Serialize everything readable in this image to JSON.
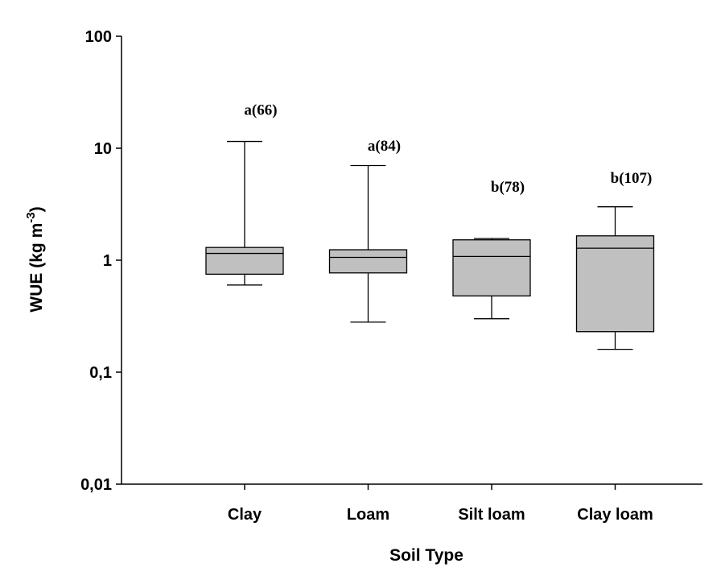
{
  "chart_data": {
    "type": "box",
    "xlabel": "Soil Type",
    "ylabel": "WUE (kg m",
    "ylabel_superscript": "-3",
    "ylabel_close": ")",
    "yscale": "log",
    "ylim": [
      0.01,
      100
    ],
    "yticks": [
      {
        "value": 0.01,
        "label": "0,01"
      },
      {
        "value": 0.1,
        "label": "0,1"
      },
      {
        "value": 1,
        "label": "1"
      },
      {
        "value": 10,
        "label": "10"
      },
      {
        "value": 100,
        "label": "100"
      }
    ],
    "categories": [
      "Clay",
      "Loam",
      "Silt loam",
      "Clay loam"
    ],
    "boxes": [
      {
        "category": "Clay",
        "whisker_low": 0.6,
        "q1": 0.75,
        "median": 1.15,
        "q3": 1.3,
        "whisker_high": 11.5,
        "annotation": "a(66)",
        "annotation_value": 22
      },
      {
        "category": "Loam",
        "whisker_low": 0.28,
        "q1": 0.77,
        "median": 1.06,
        "q3": 1.24,
        "whisker_high": 7.0,
        "annotation": "a(84)",
        "annotation_value": 10.5
      },
      {
        "category": "Silt loam",
        "whisker_low": 0.3,
        "q1": 0.48,
        "median": 1.08,
        "q3": 1.52,
        "whisker_high": 1.56,
        "annotation": "b(78)",
        "annotation_value": 4.5
      },
      {
        "category": "Clay loam",
        "whisker_low": 0.16,
        "q1": 0.23,
        "median": 1.28,
        "q3": 1.65,
        "whisker_high": 3.0,
        "annotation": "b(107)",
        "annotation_value": 5.4
      }
    ],
    "box_fill": "#c0c0c0",
    "grid": false
  }
}
